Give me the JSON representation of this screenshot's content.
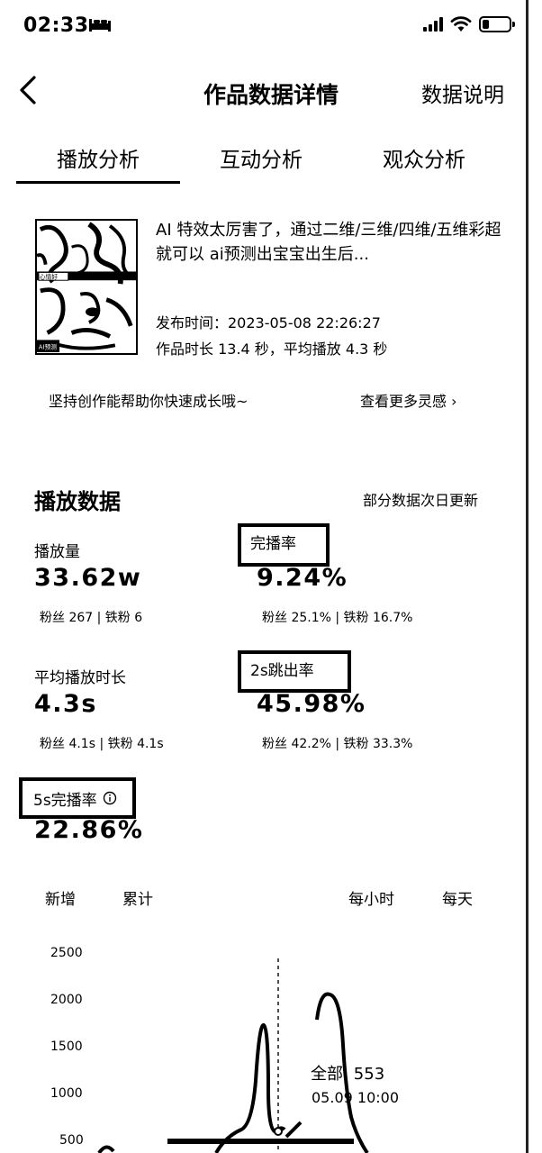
{
  "status_bar": {
    "time": "02:33"
  },
  "nav": {
    "title": "作品数据详情",
    "help": "数据说明"
  },
  "tabs": [
    {
      "label": "播放分析",
      "active": true
    },
    {
      "label": "互动分析",
      "active": false
    },
    {
      "label": "观众分析",
      "active": false
    }
  ],
  "video": {
    "thumb_badge_top": "心情好",
    "thumb_badge_bottom": "AI预测",
    "title": "AI 特效太厉害了，通过二维/三维/四维/五维彩超就可以 ai预测出宝宝出生后...",
    "publish": "发布时间：2023-05-08 22:26:27",
    "duration": "作品时长 13.4 秒，平均播放 4.3 秒"
  },
  "tip": {
    "left": "坚持创作能帮助你快速成长哦~",
    "right": "查看更多灵感 ›"
  },
  "play_data": {
    "title": "播放数据",
    "note": "部分数据次日更新",
    "metrics": {
      "plays": {
        "label": "播放量",
        "value": "33.62w",
        "sub": "粉丝 267 | 铁粉 6"
      },
      "completion": {
        "label": "完播率",
        "value": "9.24%",
        "sub": "粉丝 25.1% | 铁粉 16.7%"
      },
      "avg_time": {
        "label": "平均播放时长",
        "value": "4.3s",
        "sub": "粉丝 4.1s | 铁粉 4.1s"
      },
      "bounce2s": {
        "label": "2s跳出率",
        "value": "45.98%",
        "sub": "粉丝 42.2% | 铁粉 33.3%"
      },
      "completion5s": {
        "label": "5s完播率",
        "value": "22.86%"
      }
    }
  },
  "chart_tabs": {
    "new": "新增",
    "total": "累计",
    "hourly": "每小时",
    "daily": "每天"
  },
  "chart_data": {
    "type": "line",
    "y_ticks": [
      "2500",
      "2000",
      "1500",
      "1000",
      "500"
    ],
    "ylim": [
      0,
      2500
    ],
    "tooltip": {
      "value": "全部: 553",
      "time": "05.09 10:00"
    }
  }
}
